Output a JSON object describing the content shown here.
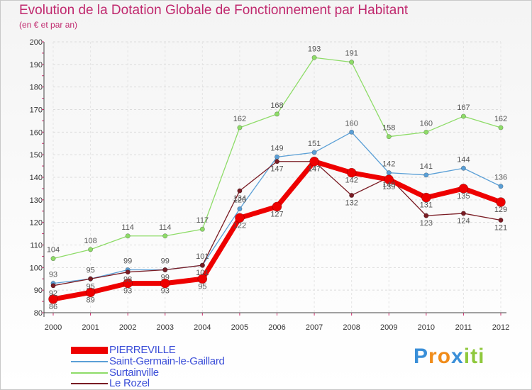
{
  "title": "Evolution de la Dotation Globale de Fonctionnement par Habitant",
  "subtitle": "(en € et par an)",
  "chart_data": {
    "type": "line",
    "title": "Evolution de la Dotation Globale de Fonctionnement par Habitant",
    "subtitle": "(en € et par an)",
    "x": [
      "2000",
      "2001",
      "2002",
      "2003",
      "2004",
      "2005",
      "2006",
      "2007",
      "2008",
      "2009",
      "2010",
      "2011",
      "2012"
    ],
    "ylim": [
      80,
      200
    ],
    "yticks": [
      80,
      90,
      100,
      110,
      120,
      130,
      140,
      150,
      160,
      170,
      180,
      190,
      200
    ],
    "grid": true,
    "legend": "bottom-left",
    "series": [
      {
        "name": "PIERREVILLE",
        "color": "#ee0000",
        "values": [
          86,
          89,
          93,
          93,
          95,
          122,
          127,
          147,
          142,
          139,
          131,
          135,
          129
        ]
      },
      {
        "name": "Saint-Germain-le-Gaillard",
        "color": "#5a9fd6",
        "values": [
          93,
          95,
          99,
          99,
          101,
          126,
          149,
          151,
          160,
          142,
          141,
          144,
          136
        ]
      },
      {
        "name": "Surtainville",
        "color": "#8edc68",
        "values": [
          104,
          108,
          114,
          114,
          117,
          162,
          168,
          193,
          191,
          158,
          160,
          167,
          162
        ]
      },
      {
        "name": "Le Rozel",
        "color": "#7a1c24",
        "values": [
          92,
          95,
          98,
          99,
          101,
          134,
          147,
          147,
          132,
          140,
          123,
          124,
          121
        ]
      }
    ]
  },
  "legend": {
    "items": [
      {
        "label": "PIERREVILLE"
      },
      {
        "label": "Saint-Germain-le-Gaillard"
      },
      {
        "label": "Surtainville"
      },
      {
        "label": "Le Rozel"
      }
    ]
  },
  "logo": {
    "text": "Proxiti",
    "letters": [
      "P",
      "r",
      "o",
      "x",
      "i",
      "t",
      "i"
    ],
    "colors": [
      "#3a8fd8",
      "#f08c1a",
      "#f08c1a",
      "#3a8fd8",
      "#8fc83c",
      "#8fc83c",
      "#8fc83c"
    ]
  }
}
